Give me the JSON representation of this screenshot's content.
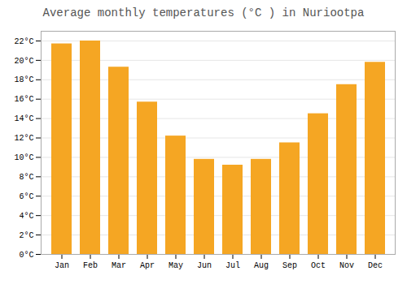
{
  "chart_data": {
    "type": "bar",
    "title": "Average monthly temperatures (°C ) in Nuriootpa",
    "categories": [
      "Jan",
      "Feb",
      "Mar",
      "Apr",
      "May",
      "Jun",
      "Jul",
      "Aug",
      "Sep",
      "Oct",
      "Nov",
      "Dec"
    ],
    "values": [
      21.7,
      22.0,
      19.3,
      15.7,
      12.2,
      9.8,
      9.2,
      9.8,
      11.5,
      14.5,
      17.5,
      19.8
    ],
    "color": "#F5A623",
    "ylim": [
      0,
      23
    ],
    "yticks": [
      {
        "value": 0,
        "label": "0°C"
      },
      {
        "value": 2,
        "label": "2°C"
      },
      {
        "value": 4,
        "label": "4°C"
      },
      {
        "value": 6,
        "label": "6°C"
      },
      {
        "value": 8,
        "label": "8°C"
      },
      {
        "value": 10,
        "label": "10°C"
      },
      {
        "value": 12,
        "label": "12°C"
      },
      {
        "value": 14,
        "label": "14°C"
      },
      {
        "value": 16,
        "label": "16°C"
      },
      {
        "value": 18,
        "label": "18°C"
      },
      {
        "value": 20,
        "label": "20°C"
      },
      {
        "value": 22,
        "label": "22°C"
      }
    ],
    "grid": true
  }
}
